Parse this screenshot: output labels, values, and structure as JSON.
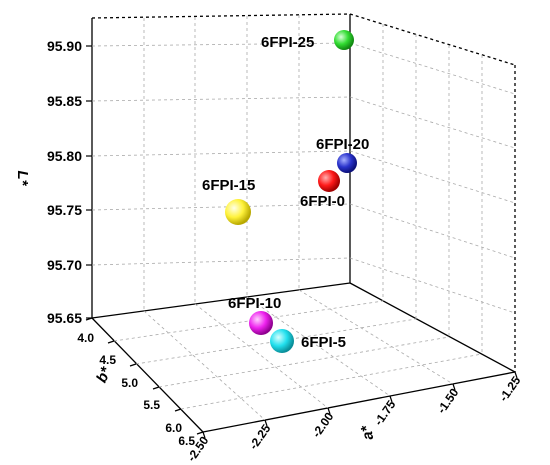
{
  "chart_data": {
    "type": "scatter",
    "projection": "3d",
    "axes": {
      "z": {
        "label": "L*",
        "ticks": [
          "95.65",
          "95.70",
          "95.75",
          "95.80",
          "95.85",
          "95.90"
        ],
        "range": [
          95.65,
          95.92
        ]
      },
      "b": {
        "label": "b*",
        "ticks": [
          "4.0",
          "4.5",
          "5.0",
          "5.5",
          "6.0",
          "6.5"
        ],
        "range": [
          4.0,
          6.5
        ]
      },
      "a": {
        "label": "a*",
        "ticks": [
          "-2.50",
          "-2.25",
          "-2.00",
          "-1.75",
          "-1.50",
          "-1.25"
        ],
        "range": [
          -2.5,
          -1.25
        ]
      }
    },
    "grid": true,
    "points": [
      {
        "label": "6FPI-0",
        "a": -1.63,
        "b": 4.7,
        "L": 95.78,
        "color": "#ff1a1a"
      },
      {
        "label": "6FPI-5",
        "a": -2.02,
        "b": 5.38,
        "L": 95.65,
        "color": "#22e0ee"
      },
      {
        "label": "6FPI-10",
        "a": -2.1,
        "b": 5.18,
        "L": 95.65,
        "color": "#ee22ee"
      },
      {
        "label": "6FPI-15",
        "a": -1.96,
        "b": 5.55,
        "L": 95.75,
        "color": "#fff23a"
      },
      {
        "label": "6FPI-20",
        "a": -1.55,
        "b": 4.55,
        "L": 95.79,
        "color": "#2a33cc"
      },
      {
        "label": "6FPI-25",
        "a": -1.3,
        "b": 4.45,
        "L": 95.91,
        "color": "#33dd33"
      }
    ]
  }
}
